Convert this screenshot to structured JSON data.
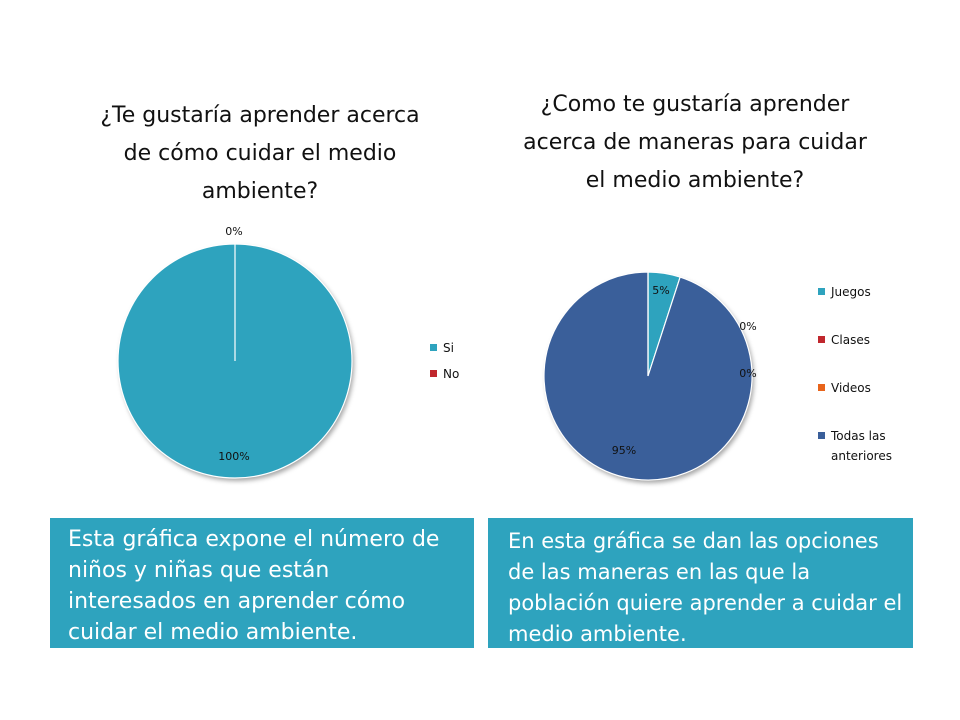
{
  "chart_data": [
    {
      "type": "pie",
      "title": "¿Te gustaría aprender acerca de cómo cuidar el medio ambiente?",
      "categories": [
        "Si",
        "No"
      ],
      "values": [
        100,
        0
      ],
      "data_labels": [
        "100%",
        "0%"
      ],
      "legend_position": "right",
      "colors": [
        "#2ea3be",
        "#c0272d"
      ]
    },
    {
      "type": "pie",
      "title": "¿Como te gustaría aprender acerca de maneras para cuidar el medio ambiente?",
      "categories": [
        "Juegos",
        "Clases",
        "Videos",
        "Todas las anteriores"
      ],
      "values": [
        5,
        0,
        0,
        95
      ],
      "data_labels": [
        "5%",
        "0%",
        "0%",
        "95%"
      ],
      "legend_position": "right",
      "colors": [
        "#2ea3be",
        "#c0272d",
        "#e8641b",
        "#3a5f9a"
      ]
    }
  ],
  "captions": {
    "left": "Esta gráfica expone el número de niños y niñas que están interesados en aprender cómo cuidar el medio ambiente.",
    "right": "En esta gráfica se dan las opciones de las maneras en las que la población quiere aprender a cuidar el medio ambiente."
  }
}
